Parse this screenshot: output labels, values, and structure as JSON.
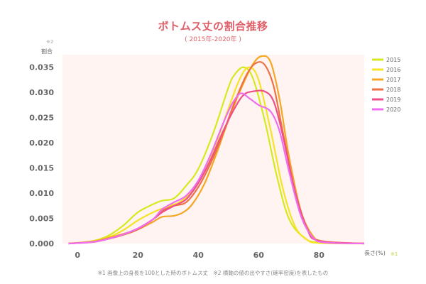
{
  "chart_data": {
    "type": "line",
    "title": "ボトムス丈の割合推移",
    "subtitle": "( 2015年-2020年 )",
    "ylabel": "割合",
    "ylabel_note": "※2",
    "xlabel": "長さ(%)",
    "xlabel_note": "※1",
    "xlim": [
      -5,
      95
    ],
    "ylim": [
      0,
      0.0375
    ],
    "x_ticks": [
      0,
      20,
      40,
      60,
      80
    ],
    "y_ticks": [
      "0.000",
      "0.005",
      "0.010",
      "0.015",
      "0.020",
      "0.025",
      "0.030",
      "0.035"
    ],
    "legend_position": "right",
    "plot_background": "#fff4f2",
    "series": [
      {
        "name": "2015",
        "color": "#d4ea1e",
        "x": [
          -3,
          5,
          10,
          15,
          20,
          25,
          28,
          32,
          36,
          40,
          45,
          50,
          52,
          55,
          58,
          62,
          66,
          70,
          75,
          80,
          95
        ],
        "y": [
          0,
          0.0005,
          0.0015,
          0.0035,
          0.0062,
          0.0078,
          0.0085,
          0.009,
          0.0115,
          0.0148,
          0.022,
          0.031,
          0.0335,
          0.035,
          0.033,
          0.0245,
          0.0135,
          0.005,
          0.0012,
          0.0002,
          0
        ]
      },
      {
        "name": "2016",
        "color": "#f5e324",
        "x": [
          -3,
          5,
          10,
          15,
          20,
          25,
          30,
          34,
          38,
          42,
          46,
          50,
          54,
          57,
          60,
          64,
          68,
          72,
          76,
          80,
          95
        ],
        "y": [
          0,
          0.0004,
          0.0012,
          0.0026,
          0.0046,
          0.0062,
          0.0074,
          0.0083,
          0.0105,
          0.0145,
          0.02,
          0.0268,
          0.033,
          0.035,
          0.0325,
          0.0225,
          0.011,
          0.0035,
          0.0008,
          0.0001,
          0
        ]
      },
      {
        "name": "2017",
        "color": "#f5a623",
        "x": [
          -3,
          5,
          10,
          15,
          20,
          25,
          28,
          32,
          35,
          38,
          42,
          46,
          50,
          54,
          58,
          61,
          64,
          67,
          70,
          74,
          78,
          82,
          95
        ],
        "y": [
          0,
          0.0004,
          0.0011,
          0.0019,
          0.0028,
          0.0043,
          0.0053,
          0.0055,
          0.0062,
          0.0078,
          0.0118,
          0.0178,
          0.0245,
          0.0305,
          0.0355,
          0.0372,
          0.036,
          0.0285,
          0.0175,
          0.0065,
          0.0015,
          0.0002,
          0
        ]
      },
      {
        "name": "2018",
        "color": "#ee7143",
        "x": [
          -3,
          5,
          10,
          15,
          20,
          25,
          28,
          32,
          36,
          40,
          44,
          48,
          52,
          56,
          59,
          62,
          65,
          68,
          72,
          76,
          80,
          95
        ],
        "y": [
          0,
          0.0003,
          0.0009,
          0.0017,
          0.0028,
          0.0048,
          0.0065,
          0.0075,
          0.0082,
          0.0112,
          0.0158,
          0.0215,
          0.028,
          0.0335,
          0.0358,
          0.0355,
          0.0312,
          0.0222,
          0.0105,
          0.0032,
          0.0006,
          0
        ]
      },
      {
        "name": "2019",
        "color": "#ee4f88",
        "x": [
          -3,
          5,
          10,
          15,
          20,
          25,
          28,
          32,
          36,
          40,
          44,
          48,
          52,
          55,
          58,
          62,
          65,
          68,
          72,
          76,
          80,
          95
        ],
        "y": [
          0,
          0.0003,
          0.0009,
          0.0018,
          0.003,
          0.0048,
          0.0062,
          0.0075,
          0.0088,
          0.012,
          0.0165,
          0.022,
          0.0268,
          0.0295,
          0.0302,
          0.0302,
          0.0282,
          0.0215,
          0.0105,
          0.003,
          0.0005,
          0
        ]
      },
      {
        "name": "2020",
        "color": "#ef6ef0",
        "x": [
          -3,
          5,
          10,
          15,
          20,
          25,
          28,
          32,
          36,
          40,
          44,
          48,
          51,
          54,
          57,
          60,
          64,
          67,
          70,
          74,
          78,
          82,
          95
        ],
        "y": [
          0,
          0.0003,
          0.0009,
          0.0018,
          0.003,
          0.0048,
          0.0068,
          0.0082,
          0.0095,
          0.0125,
          0.0175,
          0.0235,
          0.0275,
          0.0298,
          0.0288,
          0.0275,
          0.0262,
          0.0222,
          0.0145,
          0.0055,
          0.0012,
          0.0002,
          0
        ]
      }
    ]
  },
  "footnote": "※1 画像上の身長を100とした時のボトムス丈　※2 横軸の値の出やすさ(確率密度)を表したもの"
}
